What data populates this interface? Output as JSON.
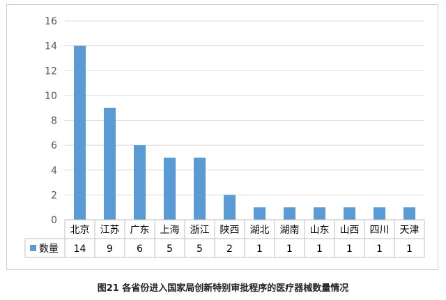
{
  "caption": "图21  各省份进入国家局创新特别审批程序的医疗器械数量情况",
  "chart_data": {
    "type": "bar",
    "categories": [
      "北京",
      "江苏",
      "广东",
      "上海",
      "浙江",
      "陕西",
      "湖北",
      "湖南",
      "山东",
      "山西",
      "四川",
      "天津"
    ],
    "series": [
      {
        "name": "数量",
        "values": [
          14,
          9,
          6,
          5,
          5,
          2,
          1,
          1,
          1,
          1,
          1,
          1
        ]
      }
    ],
    "yticks": [
      0,
      2,
      4,
      6,
      8,
      10,
      12,
      14,
      16
    ],
    "ylim": [
      0,
      16
    ],
    "grid": true,
    "data_table": true,
    "colors": {
      "bar": "#5b9bd5",
      "grid": "#d9d9d9",
      "axis": "#bfbfbf",
      "text": "#595959",
      "table_text": "#000000"
    }
  }
}
